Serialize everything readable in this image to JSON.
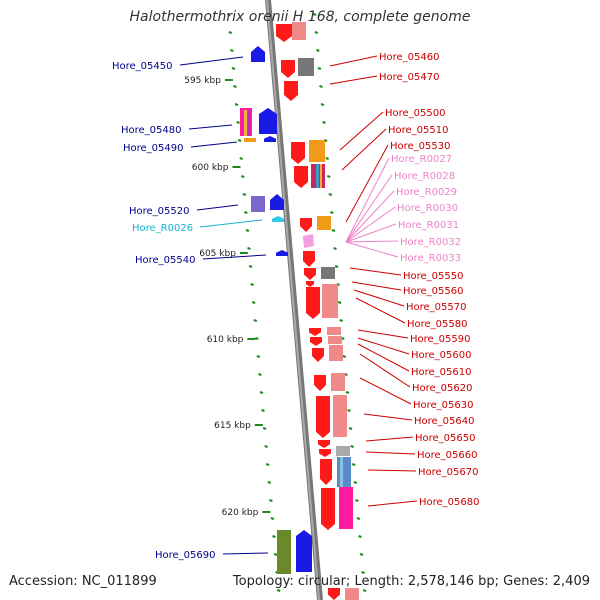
{
  "title": "Halothermothrix orenii H 168, complete genome",
  "footer": {
    "accession": "Accession: NC_011899",
    "info": "Topology: circular; Length: 2,578,146 bp; Genes: 2,409"
  },
  "colors": {
    "backbone": "#888888",
    "tick": "#1a8a1a",
    "left_label": "#00008b",
    "right_label": "#cc0000",
    "rna_label": "#ee82c8",
    "cyan_label": "#1ab0d0"
  },
  "ticks": [
    "595 kbp",
    "600 kbp",
    "605 kbp",
    "610 kbp",
    "615 kbp",
    "620 kbp"
  ],
  "left_labels": [
    "Hore_05450",
    "Hore_05480",
    "Hore_05490",
    "Hore_05520",
    "Hore_R0026",
    "Hore_05540",
    "Hore_05690"
  ],
  "right_labels": [
    "Hore_05460",
    "Hore_05470",
    "Hore_05500",
    "Hore_05510",
    "Hore_05530",
    "Hore_05550",
    "Hore_05560",
    "Hore_05570",
    "Hore_05580",
    "Hore_05590",
    "Hore_05600",
    "Hore_05610",
    "Hore_05620",
    "Hore_05630",
    "Hore_05640",
    "Hore_05650",
    "Hore_05660",
    "Hore_05670",
    "Hore_05680"
  ],
  "rna_labels": [
    "Hore_R0027",
    "Hore_R0028",
    "Hore_R0029",
    "Hore_R0030",
    "Hore_R0031",
    "Hore_R0032",
    "Hore_R0033"
  ]
}
